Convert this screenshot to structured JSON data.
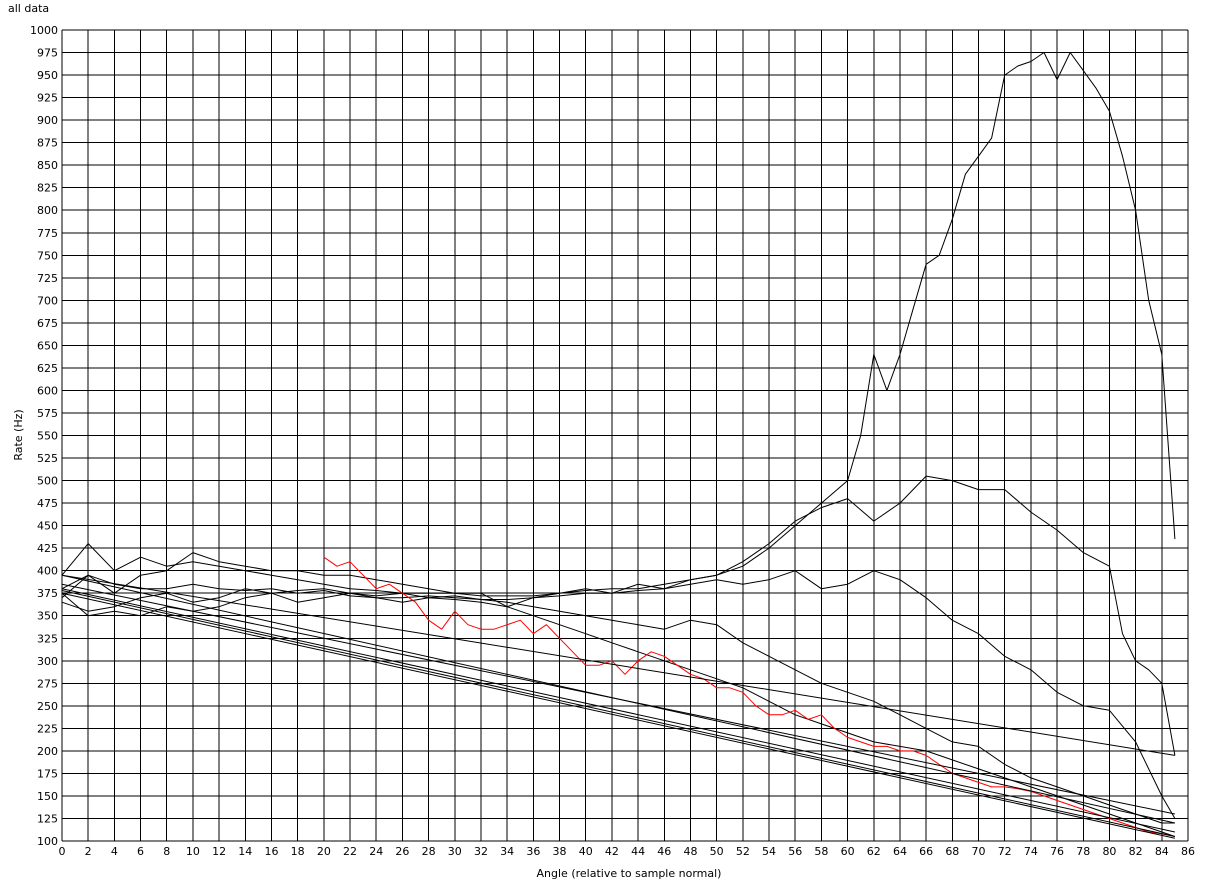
{
  "window": {
    "title": "all data"
  },
  "chart_data": {
    "type": "line",
    "title": "all data",
    "xlabel": "Angle (relative to sample normal)",
    "ylabel": "Rate (Hz)",
    "xlim": [
      0,
      86
    ],
    "ylim": [
      100,
      1000
    ],
    "x_ticks": [
      0,
      2,
      4,
      6,
      8,
      10,
      12,
      14,
      16,
      18,
      20,
      22,
      24,
      26,
      28,
      30,
      32,
      34,
      36,
      38,
      40,
      42,
      44,
      46,
      48,
      50,
      52,
      54,
      56,
      58,
      60,
      62,
      64,
      66,
      68,
      70,
      72,
      74,
      76,
      78,
      80,
      82,
      84,
      86
    ],
    "y_ticks": [
      100,
      125,
      150,
      175,
      200,
      225,
      250,
      275,
      300,
      325,
      350,
      375,
      400,
      425,
      450,
      475,
      500,
      525,
      550,
      575,
      600,
      625,
      650,
      675,
      700,
      725,
      750,
      775,
      800,
      825,
      850,
      875,
      900,
      925,
      950,
      975,
      1000
    ],
    "grid": true,
    "legend": "none",
    "series": [
      {
        "color": "#000000",
        "x": [
          0,
          2,
          4,
          6,
          8,
          10,
          12,
          14,
          16,
          18,
          20,
          22,
          24,
          26,
          28,
          30,
          32,
          34,
          36,
          38,
          40,
          42,
          44,
          46,
          48,
          50,
          52,
          54,
          56,
          58,
          60,
          61,
          62,
          63,
          64,
          65,
          66,
          67,
          68,
          69,
          70,
          71,
          72,
          73,
          74,
          75,
          76,
          77,
          78,
          79,
          80,
          81,
          82,
          83,
          84,
          85
        ],
        "y": [
          395,
          430,
          400,
          415,
          405,
          410,
          405,
          400,
          395,
          390,
          385,
          380,
          378,
          375,
          375,
          375,
          372,
          372,
          372,
          375,
          378,
          380,
          380,
          385,
          390,
          395,
          405,
          425,
          450,
          475,
          500,
          550,
          640,
          600,
          640,
          690,
          740,
          750,
          790,
          840,
          860,
          880,
          950,
          960,
          965,
          975,
          945,
          975,
          955,
          935,
          910,
          860,
          800,
          700,
          640,
          435
        ]
      },
      {
        "color": "#000000",
        "x": [
          0,
          2,
          4,
          6,
          8,
          10,
          12,
          14,
          16,
          18,
          20,
          22,
          24,
          26,
          28,
          30,
          32,
          34,
          36,
          38,
          40,
          42,
          44,
          46,
          48,
          50,
          52,
          54,
          56,
          58,
          60,
          62,
          64,
          66,
          68,
          70,
          72,
          74,
          76,
          78,
          80,
          81,
          82,
          83,
          84,
          85
        ],
        "y": [
          370,
          395,
          385,
          380,
          380,
          385,
          380,
          378,
          380,
          375,
          378,
          372,
          370,
          370,
          372,
          370,
          368,
          368,
          370,
          372,
          375,
          375,
          378,
          380,
          390,
          395,
          410,
          430,
          455,
          470,
          480,
          455,
          475,
          505,
          500,
          490,
          490,
          465,
          445,
          420,
          405,
          330,
          300,
          290,
          275,
          195
        ]
      },
      {
        "color": "#000000",
        "x": [
          0,
          2,
          4,
          6,
          8,
          10,
          12,
          14,
          16,
          18,
          20,
          22,
          24,
          26,
          28,
          30,
          32,
          34,
          36,
          38,
          40,
          42,
          44,
          46,
          48,
          50,
          52,
          54,
          56,
          58,
          60,
          62,
          64,
          66,
          68,
          70,
          72,
          74,
          76,
          78,
          80,
          82,
          84,
          85
        ],
        "y": [
          380,
          395,
          375,
          395,
          400,
          420,
          410,
          405,
          400,
          400,
          395,
          395,
          390,
          385,
          380,
          375,
          375,
          360,
          370,
          375,
          380,
          375,
          385,
          380,
          385,
          390,
          385,
          390,
          400,
          380,
          385,
          400,
          390,
          370,
          345,
          330,
          305,
          290,
          265,
          250,
          245,
          210,
          150,
          125
        ]
      },
      {
        "color": "#000000",
        "x": [
          0,
          2,
          4,
          6,
          8,
          10,
          12,
          14,
          16,
          18,
          20,
          22,
          24,
          26,
          28,
          30,
          32,
          34,
          36,
          38,
          40,
          42,
          44,
          46,
          48,
          50,
          52,
          54,
          56,
          58,
          60,
          62,
          64,
          66,
          68,
          70,
          72,
          74,
          76,
          78,
          80,
          82,
          84,
          85
        ],
        "y": [
          365,
          355,
          360,
          370,
          375,
          365,
          370,
          380,
          375,
          378,
          380,
          375,
          372,
          375,
          370,
          372,
          368,
          365,
          360,
          355,
          350,
          345,
          340,
          335,
          345,
          340,
          320,
          305,
          290,
          275,
          265,
          255,
          240,
          225,
          210,
          205,
          185,
          170,
          160,
          150,
          140,
          130,
          120,
          120
        ]
      },
      {
        "color": "#000000",
        "x": [
          0,
          2,
          4,
          6,
          8,
          10,
          12,
          14,
          16,
          18,
          20,
          22,
          24,
          26,
          28,
          30,
          32,
          34,
          36,
          38,
          40,
          42,
          44,
          46,
          48,
          50,
          52,
          54,
          56,
          58,
          60,
          62,
          64,
          66,
          68,
          70,
          72,
          74,
          76,
          78,
          80,
          82,
          84,
          85
        ],
        "y": [
          375,
          350,
          355,
          350,
          360,
          355,
          360,
          370,
          375,
          365,
          370,
          375,
          370,
          365,
          370,
          368,
          365,
          360,
          350,
          340,
          330,
          320,
          310,
          300,
          290,
          280,
          270,
          255,
          240,
          230,
          220,
          210,
          205,
          200,
          190,
          180,
          170,
          160,
          150,
          140,
          130,
          120,
          110,
          105
        ]
      },
      {
        "color": "#ff0000",
        "x": [
          20,
          21,
          22,
          23,
          24,
          25,
          26,
          27,
          28,
          29,
          30,
          31,
          32,
          33,
          34,
          35,
          36,
          37,
          38,
          39,
          40,
          41,
          42,
          43,
          44,
          45,
          46,
          47,
          48,
          49,
          50,
          51,
          52,
          53,
          54,
          55,
          56,
          57,
          58,
          59,
          60,
          61,
          62,
          63,
          64,
          65,
          66,
          67,
          68,
          69,
          70,
          71,
          72,
          73,
          74,
          75,
          76,
          77,
          78,
          79,
          80,
          81,
          82,
          83,
          84,
          85
        ],
        "y": [
          415,
          405,
          410,
          395,
          380,
          385,
          375,
          365,
          345,
          335,
          355,
          340,
          335,
          335,
          340,
          345,
          330,
          340,
          325,
          310,
          295,
          295,
          300,
          285,
          300,
          310,
          305,
          295,
          285,
          280,
          270,
          270,
          265,
          250,
          240,
          240,
          245,
          235,
          240,
          225,
          215,
          210,
          205,
          205,
          200,
          200,
          195,
          185,
          175,
          170,
          165,
          160,
          160,
          158,
          155,
          150,
          145,
          140,
          135,
          130,
          125,
          120,
          115,
          110,
          108,
          105
        ]
      },
      {
        "color": "#000000",
        "x": [
          0,
          85
        ],
        "y": [
          395,
          120
        ]
      },
      {
        "color": "#000000",
        "x": [
          0,
          85
        ],
        "y": [
          380,
          110
        ]
      },
      {
        "color": "#000000",
        "x": [
          0,
          85
        ],
        "y": [
          378,
          105
        ]
      },
      {
        "color": "#000000",
        "x": [
          0,
          85
        ],
        "y": [
          375,
          103
        ]
      },
      {
        "color": "#000000",
        "x": [
          0,
          85
        ],
        "y": [
          385,
          130
        ]
      },
      {
        "color": "#000000",
        "x": [
          0,
          85
        ],
        "y": [
          395,
          195
        ]
      }
    ]
  }
}
